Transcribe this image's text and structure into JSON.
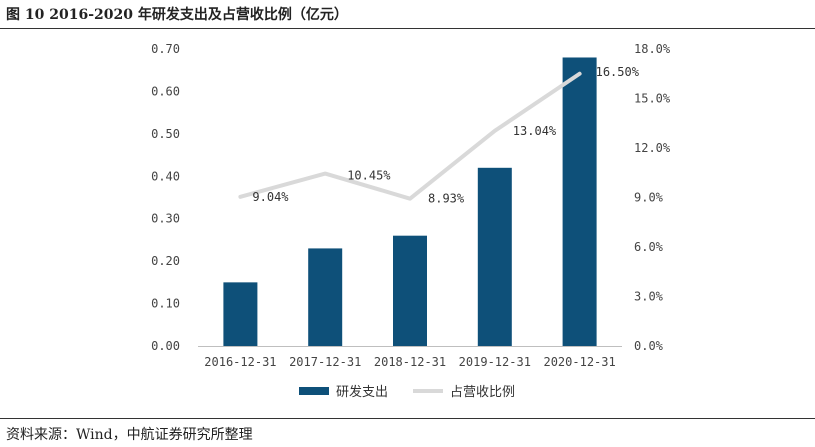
{
  "title": "图 10  2016-2020 年研发支出及占营收比例（亿元）",
  "source": "资料来源：Wind，中航证券研究所整理",
  "chart_data": {
    "type": "bar",
    "title": "图 10  2016-2020 年研发支出及占营收比例（亿元）",
    "categories": [
      "2016-12-31",
      "2017-12-31",
      "2018-12-31",
      "2019-12-31",
      "2020-12-31"
    ],
    "series": [
      {
        "name": "研发支出",
        "type": "bar",
        "axis": "left",
        "color": "#0e5079",
        "values": [
          0.15,
          0.23,
          0.26,
          0.42,
          0.68
        ]
      },
      {
        "name": "占营收比例",
        "type": "line",
        "axis": "right",
        "color": "#d9d9d9",
        "values": [
          9.04,
          10.45,
          8.93,
          13.04,
          16.5
        ],
        "labels": [
          "9.04%",
          "10.45%",
          "8.93%",
          "13.04%",
          "16.50%"
        ]
      }
    ],
    "y_left": {
      "ylim": [
        0,
        0.7
      ],
      "ticks": [
        "0.00",
        "0.10",
        "0.20",
        "0.30",
        "0.40",
        "0.50",
        "0.60",
        "0.70"
      ]
    },
    "y_right": {
      "ylim": [
        0,
        18
      ],
      "ticks": [
        "0.0%",
        "3.0%",
        "6.0%",
        "9.0%",
        "12.0%",
        "15.0%",
        "18.0%"
      ]
    },
    "legend": {
      "position": "bottom",
      "items": [
        "研发支出",
        "占营收比例"
      ]
    },
    "grid": false
  }
}
